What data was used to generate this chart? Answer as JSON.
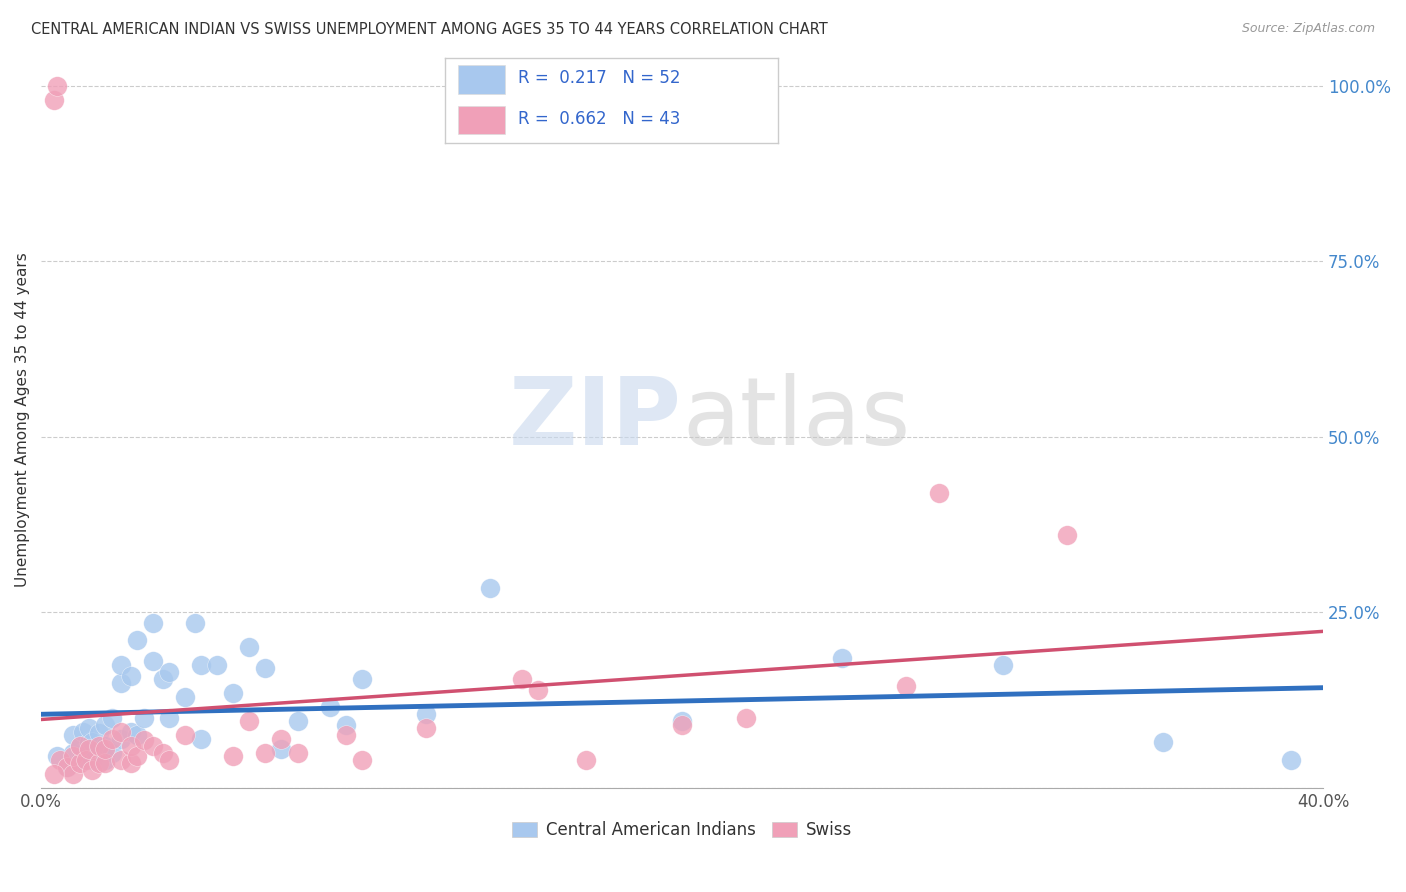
{
  "title": "CENTRAL AMERICAN INDIAN VS SWISS UNEMPLOYMENT AMONG AGES 35 TO 44 YEARS CORRELATION CHART",
  "source": "Source: ZipAtlas.com",
  "ylabel": "Unemployment Among Ages 35 to 44 years",
  "xlim": [
    0,
    0.4
  ],
  "ylim": [
    0,
    1.05
  ],
  "yticks": [
    0.0,
    0.25,
    0.5,
    0.75,
    1.0
  ],
  "ytick_labels": [
    "",
    "25.0%",
    "50.0%",
    "75.0%",
    "100.0%"
  ],
  "legend1_R": "0.217",
  "legend1_N": "52",
  "legend2_R": "0.662",
  "legend2_N": "43",
  "blue_color": "#A8C8EE",
  "pink_color": "#F0A0B8",
  "blue_line_color": "#3070C0",
  "pink_line_color": "#D05070",
  "watermark1": "ZIP",
  "watermark2": "atlas",
  "blue_x": [
    0.005,
    0.008,
    0.01,
    0.01,
    0.012,
    0.012,
    0.013,
    0.015,
    0.015,
    0.015,
    0.016,
    0.016,
    0.018,
    0.018,
    0.02,
    0.02,
    0.02,
    0.022,
    0.022,
    0.025,
    0.025,
    0.025,
    0.028,
    0.028,
    0.03,
    0.03,
    0.032,
    0.035,
    0.035,
    0.038,
    0.04,
    0.04,
    0.045,
    0.048,
    0.05,
    0.05,
    0.055,
    0.06,
    0.065,
    0.07,
    0.075,
    0.08,
    0.09,
    0.095,
    0.1,
    0.12,
    0.14,
    0.2,
    0.25,
    0.3,
    0.35,
    0.39
  ],
  "blue_y": [
    0.045,
    0.03,
    0.05,
    0.075,
    0.04,
    0.06,
    0.08,
    0.05,
    0.065,
    0.085,
    0.04,
    0.065,
    0.055,
    0.078,
    0.04,
    0.06,
    0.09,
    0.05,
    0.1,
    0.07,
    0.15,
    0.175,
    0.08,
    0.16,
    0.075,
    0.21,
    0.1,
    0.18,
    0.235,
    0.155,
    0.1,
    0.165,
    0.13,
    0.235,
    0.07,
    0.175,
    0.175,
    0.135,
    0.2,
    0.17,
    0.055,
    0.095,
    0.115,
    0.09,
    0.155,
    0.105,
    0.285,
    0.095,
    0.185,
    0.175,
    0.065,
    0.04
  ],
  "pink_x": [
    0.004,
    0.005,
    0.006,
    0.008,
    0.01,
    0.01,
    0.012,
    0.012,
    0.014,
    0.015,
    0.016,
    0.018,
    0.018,
    0.02,
    0.02,
    0.022,
    0.025,
    0.025,
    0.028,
    0.028,
    0.03,
    0.032,
    0.035,
    0.038,
    0.04,
    0.045,
    0.06,
    0.065,
    0.07,
    0.075,
    0.08,
    0.095,
    0.1,
    0.12,
    0.15,
    0.155,
    0.17,
    0.2,
    0.22,
    0.27,
    0.28,
    0.32,
    0.004
  ],
  "pink_y": [
    0.98,
    1.0,
    0.04,
    0.03,
    0.02,
    0.045,
    0.035,
    0.06,
    0.04,
    0.055,
    0.025,
    0.035,
    0.06,
    0.035,
    0.055,
    0.07,
    0.04,
    0.08,
    0.035,
    0.06,
    0.045,
    0.068,
    0.06,
    0.05,
    0.04,
    0.075,
    0.045,
    0.095,
    0.05,
    0.07,
    0.05,
    0.075,
    0.04,
    0.085,
    0.155,
    0.14,
    0.04,
    0.09,
    0.1,
    0.145,
    0.42,
    0.36,
    0.02
  ]
}
